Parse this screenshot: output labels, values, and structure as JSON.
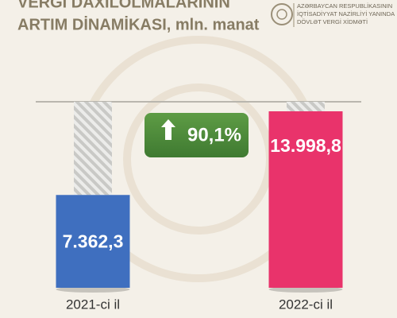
{
  "chart_data": {
    "type": "bar",
    "title": [
      "VERGİ DAXİLOLMALARININ",
      "ARTIM DİNAMİKASI, mln. manat"
    ],
    "logo_text": [
      "AZƏRBAYCAN RESPUBLİKASININ",
      "İQTİSADİYYAT NAZİRLİYİ YANINDA",
      "DÖVLƏT VERGİ XİDMƏTİ"
    ],
    "annotation": "90,1%",
    "categories": [
      "2021-ci il",
      "2022-ci il"
    ],
    "values": [
      7362.3,
      13998.8
    ],
    "value_labels": [
      "7.362,3",
      "13.998,8"
    ],
    "colors": [
      "#3f6fbf",
      "#e9336b"
    ]
  }
}
